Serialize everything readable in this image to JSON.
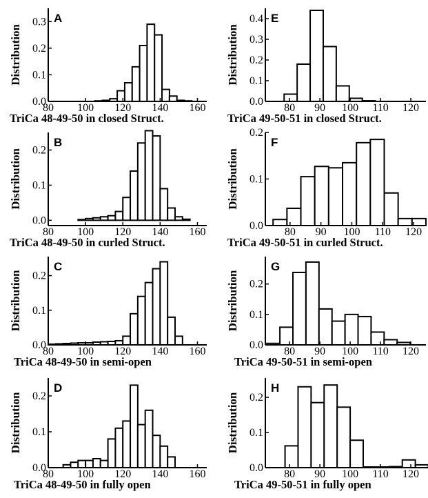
{
  "chart_data": [
    {
      "type": "bar",
      "panel": "A",
      "xlabel": "TriCa 48-49-50 in closed Struct.",
      "ylabel": "Distribution",
      "xlim": [
        80,
        165
      ],
      "ylim": [
        0,
        0.35
      ],
      "xticks": [
        80,
        100,
        120,
        140,
        160
      ],
      "yticks": [
        0.0,
        0.1,
        0.2,
        0.3
      ],
      "ytick_labels": [
        "0.0",
        "0.1",
        "0.2",
        "0.3"
      ],
      "bin_width": 4,
      "bin_starts": [
        105,
        109,
        113,
        117,
        121,
        125,
        129,
        133,
        137,
        141,
        145,
        149,
        153
      ],
      "values": [
        0.002,
        0.004,
        0.01,
        0.04,
        0.07,
        0.13,
        0.21,
        0.29,
        0.25,
        0.045,
        0.02,
        0.004,
        0.002
      ]
    },
    {
      "type": "bar",
      "panel": "B",
      "xlabel": "TriCa 48-49-50 in curled Struct.",
      "ylabel": "Distribution",
      "xlim": [
        80,
        165
      ],
      "ylim": [
        -0.015,
        0.25
      ],
      "xticks": [
        80,
        100,
        120,
        140,
        160
      ],
      "yticks": [
        0.0,
        0.1,
        0.2
      ],
      "ytick_labels": [
        "0.0",
        "0.1",
        "0.2"
      ],
      "bin_width": 4,
      "bin_starts": [
        96,
        100,
        104,
        108,
        112,
        116,
        120,
        124,
        128,
        132,
        136,
        140,
        144,
        148,
        152
      ],
      "values": [
        0.002,
        0.005,
        0.007,
        0.01,
        0.013,
        0.025,
        0.065,
        0.14,
        0.22,
        0.255,
        0.24,
        0.09,
        0.035,
        0.01,
        0.003
      ]
    },
    {
      "type": "bar",
      "panel": "C",
      "xlabel": "TriCa 48-49-50 in semi-open",
      "ylabel": "Distribution",
      "xlim": [
        80,
        165
      ],
      "ylim": [
        0,
        0.255
      ],
      "xticks": [
        80,
        100,
        120,
        140,
        160
      ],
      "yticks": [
        0.0,
        0.1,
        0.2
      ],
      "ytick_labels": [
        "0.0",
        "0.1",
        "0.2"
      ],
      "bin_width": 4,
      "bin_starts": [
        80,
        84,
        88,
        92,
        96,
        100,
        104,
        108,
        112,
        116,
        120,
        124,
        128,
        132,
        136,
        140,
        144,
        148
      ],
      "values": [
        0.002,
        0.003,
        0.004,
        0.005,
        0.006,
        0.006,
        0.008,
        0.009,
        0.01,
        0.012,
        0.025,
        0.09,
        0.14,
        0.18,
        0.22,
        0.24,
        0.08,
        0.025
      ]
    },
    {
      "type": "bar",
      "panel": "D",
      "xlabel": "TriCa 48-49-50 in fully open",
      "ylabel": "Distribution",
      "xlim": [
        80,
        165
      ],
      "ylim": [
        0,
        0.25
      ],
      "xticks": [
        80,
        100,
        120,
        140,
        160
      ],
      "yticks": [
        0.0,
        0.1,
        0.2
      ],
      "ytick_labels": [
        "0.0",
        "0.1",
        "0.2"
      ],
      "bin_width": 4,
      "bin_starts": [
        88,
        92,
        96,
        100,
        104,
        108,
        112,
        116,
        120,
        124,
        128,
        132,
        136,
        140,
        144
      ],
      "values": [
        0.008,
        0.015,
        0.02,
        0.02,
        0.025,
        0.02,
        0.08,
        0.11,
        0.13,
        0.23,
        0.12,
        0.16,
        0.09,
        0.06,
        0.03
      ]
    },
    {
      "type": "bar",
      "panel": "E",
      "xlabel": "TriCa 49-50-51 in closed Struct.",
      "ylabel": "Distribution",
      "xlim": [
        72,
        125
      ],
      "ylim": [
        0,
        0.45
      ],
      "xticks": [
        80,
        90,
        100,
        110,
        120
      ],
      "yticks": [
        0.0,
        0.1,
        0.2,
        0.3,
        0.4
      ],
      "ytick_labels": [
        "0.0",
        "0.1",
        "0.2",
        "0.3",
        "0.4"
      ],
      "bin_width": 4.3,
      "bin_starts": [
        78.2,
        82.5,
        86.8,
        91.1,
        95.4,
        99.7,
        104.0
      ],
      "values": [
        0.035,
        0.18,
        0.44,
        0.265,
        0.075,
        0.015,
        0.003
      ]
    },
    {
      "type": "bar",
      "panel": "F",
      "xlabel": "TriCa 49-50-51 in curled Struct.",
      "ylabel": "Distribution",
      "xlim": [
        72,
        124
      ],
      "ylim": [
        0,
        0.2
      ],
      "xticks": [
        80,
        90,
        100,
        110,
        120
      ],
      "yticks": [
        0.0,
        0.1,
        0.2
      ],
      "ytick_labels": [
        "0.0",
        "0.1",
        "0.2"
      ],
      "bin_width": 4.5,
      "bin_starts": [
        74.5,
        79.0,
        83.5,
        88.0,
        92.5,
        97.0,
        101.5,
        106.0,
        110.5,
        115.0,
        119.5
      ],
      "values": [
        0.013,
        0.037,
        0.105,
        0.127,
        0.124,
        0.135,
        0.178,
        0.185,
        0.07,
        0.015,
        0.015
      ]
    },
    {
      "type": "bar",
      "panel": "G",
      "xlabel": "TriCa 49-50-51 in semi-open",
      "ylabel": "Distribution",
      "xlim": [
        72,
        125
      ],
      "ylim": [
        0,
        0.29
      ],
      "xticks": [
        80,
        90,
        100,
        110,
        120
      ],
      "yticks": [
        0.0,
        0.1,
        0.2
      ],
      "ytick_labels": [
        "0.0",
        "0.1",
        "0.2"
      ],
      "bin_width": 4.3,
      "bin_starts": [
        72.5,
        76.8,
        81.1,
        85.4,
        89.7,
        94.0,
        98.3,
        102.6,
        106.9,
        111.2,
        115.5
      ],
      "values": [
        0.005,
        0.058,
        0.238,
        0.272,
        0.118,
        0.078,
        0.1,
        0.093,
        0.042,
        0.017,
        0.008
      ]
    },
    {
      "type": "bar",
      "panel": "H",
      "xlabel": "TriCa 49-50-51 in fully open",
      "ylabel": "Distribution",
      "xlim": [
        72,
        125
      ],
      "ylim": [
        0,
        0.255
      ],
      "xticks": [
        80,
        90,
        100,
        110,
        120
      ],
      "yticks": [
        0.0,
        0.1,
        0.2
      ],
      "ytick_labels": [
        "0.0",
        "0.1",
        "0.2"
      ],
      "bin_width": 4.3,
      "bin_starts": [
        78.5,
        82.8,
        87.1,
        91.4,
        95.7,
        100.0,
        104.3,
        108.6,
        112.9,
        117.2,
        121.5
      ],
      "values": [
        0.062,
        0.23,
        0.185,
        0.235,
        0.172,
        0.078,
        0.002,
        0.002,
        0.003,
        0.022,
        0.008
      ]
    }
  ]
}
